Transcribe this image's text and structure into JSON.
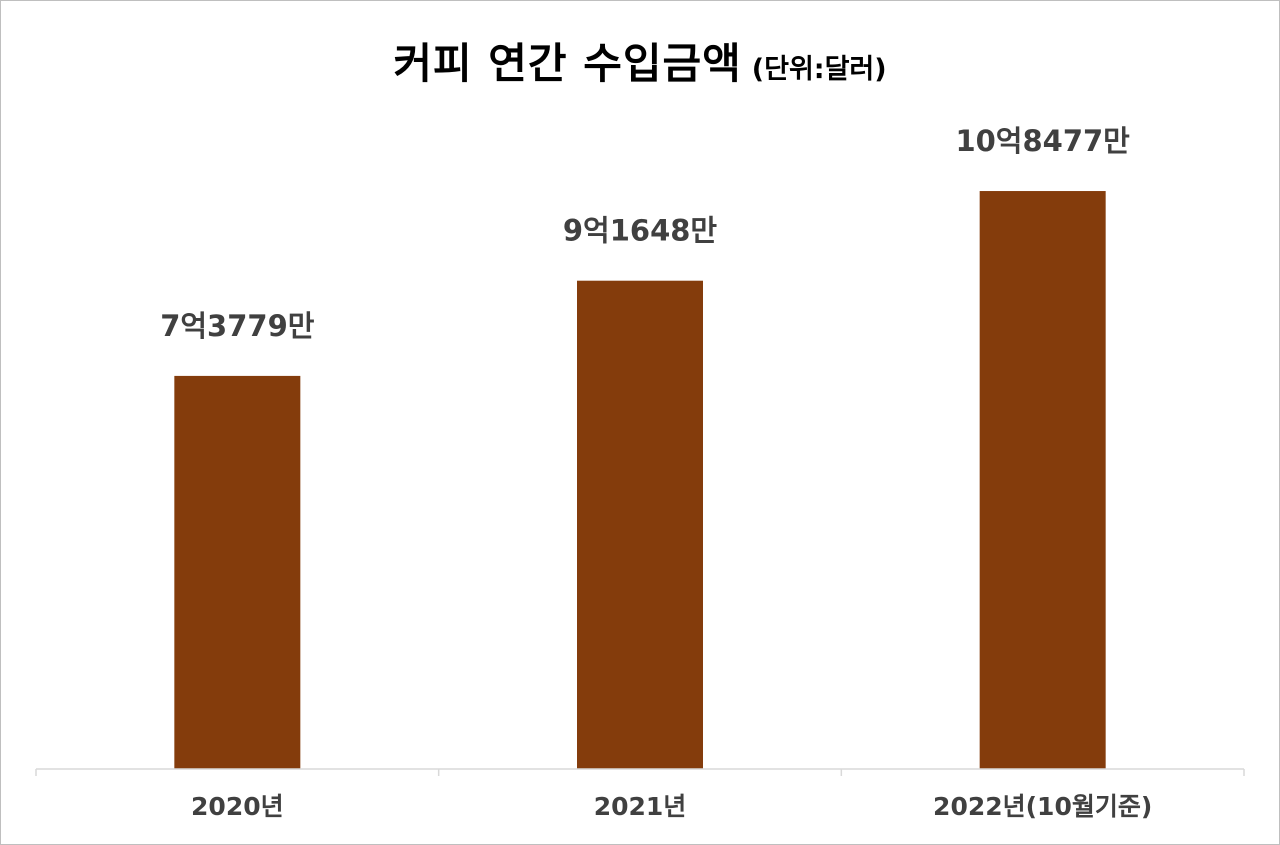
{
  "chart_data": {
    "type": "bar",
    "title": "커피 연간 수입금액",
    "subtitle": "(단위:달러)",
    "categories": [
      "2020년",
      "2021년",
      "2022년(10월기준)"
    ],
    "values": [
      737790000,
      916480000,
      1084770000
    ],
    "data_labels": [
      "7억3779만",
      "9억1648만",
      "10억8477만"
    ],
    "ylim": [
      0,
      1250000000
    ],
    "grid": false,
    "legend": "none",
    "bar_color": "#843c0c",
    "label_color": "#404040",
    "axis_color": "#d9d9d9"
  }
}
